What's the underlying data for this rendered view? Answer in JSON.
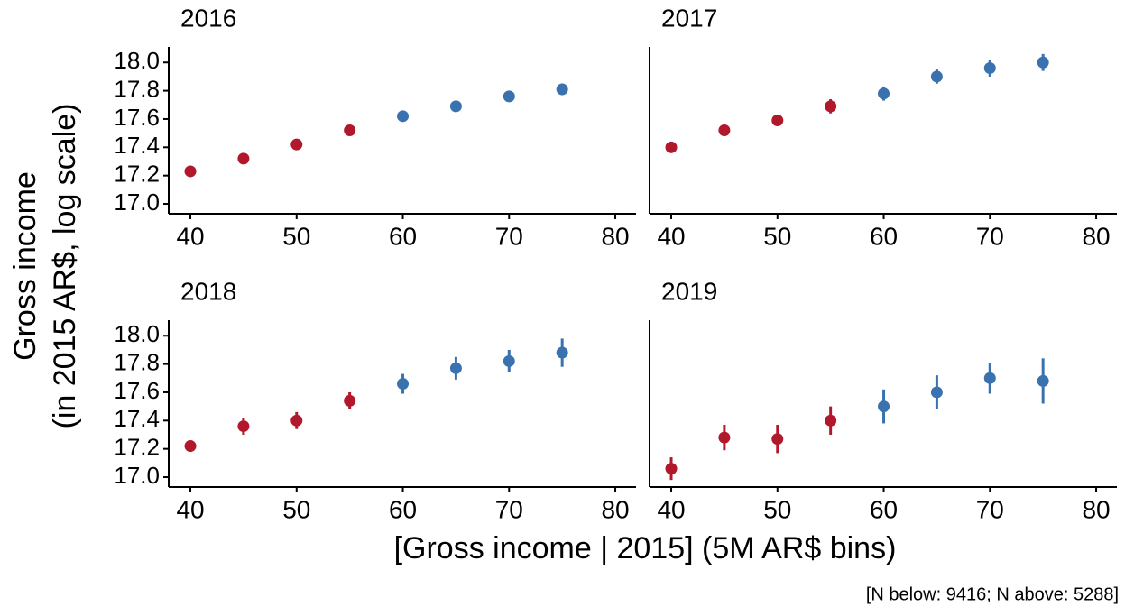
{
  "chart_data": [
    {
      "type": "scatter",
      "title": "2016",
      "xlim": [
        37.96,
        81.95
      ],
      "xticks": [
        40,
        50,
        60,
        70,
        80
      ],
      "ylim": [
        16.93,
        18.11
      ],
      "yticks": [
        {
          "value": 17,
          "label": "17.0"
        },
        17.2,
        17.4,
        17.6,
        17.8,
        {
          "value": 18,
          "label": "18.0"
        }
      ],
      "series": [
        {
          "color": "#b2182b",
          "x": [
            40,
            45,
            50,
            55
          ],
          "values": [
            17.23,
            17.32,
            17.42,
            17.52
          ],
          "errors": [
            0.02,
            0.03,
            0.02,
            0.03
          ]
        },
        {
          "color": "#3a72b0",
          "x": [
            60,
            65,
            70,
            75
          ],
          "values": [
            17.62,
            17.69,
            17.76,
            17.81
          ],
          "errors": [
            0.03,
            0.04,
            0.03,
            0.04
          ]
        }
      ]
    },
    {
      "type": "scatter",
      "title": "2017",
      "xlim": [
        37.96,
        81.95
      ],
      "xticks": [
        40,
        50,
        60,
        70,
        80
      ],
      "ylim": [
        16.93,
        18.11
      ],
      "series": [
        {
          "color": "#b2182b",
          "x": [
            40,
            45,
            50,
            55
          ],
          "values": [
            17.4,
            17.52,
            17.59,
            17.69
          ],
          "errors": [
            0.02,
            0.04,
            0.03,
            0.05
          ]
        },
        {
          "color": "#3a72b0",
          "x": [
            60,
            65,
            70,
            75
          ],
          "values": [
            17.78,
            17.9,
            17.96,
            18.0
          ],
          "errors": [
            0.05,
            0.05,
            0.06,
            0.06
          ]
        }
      ]
    },
    {
      "type": "scatter",
      "title": "2018",
      "xlim": [
        37.96,
        81.95
      ],
      "xticks": [
        40,
        50,
        60,
        70,
        80
      ],
      "ylim": [
        16.93,
        18.11
      ],
      "yticks": [
        {
          "value": 17,
          "label": "17.0"
        },
        17.2,
        17.4,
        17.6,
        17.8,
        {
          "value": 18,
          "label": "18.0"
        }
      ],
      "series": [
        {
          "color": "#b2182b",
          "x": [
            40,
            45,
            50,
            55
          ],
          "values": [
            17.22,
            17.36,
            17.4,
            17.54
          ],
          "errors": [
            0.04,
            0.06,
            0.06,
            0.06
          ]
        },
        {
          "color": "#3a72b0",
          "x": [
            60,
            65,
            70,
            75
          ],
          "values": [
            17.66,
            17.77,
            17.82,
            17.88
          ],
          "errors": [
            0.07,
            0.08,
            0.08,
            0.1
          ]
        }
      ]
    },
    {
      "type": "scatter",
      "title": "2019",
      "xlim": [
        37.96,
        81.95
      ],
      "xticks": [
        40,
        50,
        60,
        70,
        80
      ],
      "ylim": [
        16.93,
        18.11
      ],
      "series": [
        {
          "color": "#b2182b",
          "x": [
            40,
            45,
            50,
            55
          ],
          "values": [
            17.06,
            17.28,
            17.27,
            17.4
          ],
          "errors": [
            0.08,
            0.09,
            0.1,
            0.1
          ]
        },
        {
          "color": "#3a72b0",
          "x": [
            60,
            65,
            70,
            75
          ],
          "values": [
            17.5,
            17.6,
            17.7,
            17.68
          ],
          "errors": [
            0.12,
            0.12,
            0.11,
            0.16
          ]
        }
      ]
    }
  ],
  "x_label": "[Gross income | 2015] (5M AR$ bins)",
  "y_label": [
    "Gross income",
    "(in 2015 AR$, log scale)"
  ],
  "caption": "[N below: 9416; N above: 5288]"
}
